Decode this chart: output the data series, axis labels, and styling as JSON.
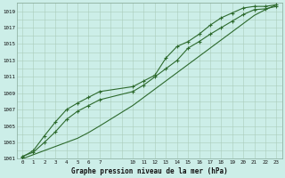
{
  "title": "Graphe pression niveau de la mer (hPa)",
  "bg_color": "#cceee8",
  "grid_color": "#aaccbb",
  "line_color": "#2d6a2d",
  "xlim": [
    -0.5,
    23.5
  ],
  "ylim": [
    1001,
    1020
  ],
  "xticks": [
    0,
    1,
    2,
    3,
    4,
    5,
    6,
    7,
    10,
    11,
    12,
    13,
    14,
    15,
    16,
    17,
    18,
    19,
    20,
    21,
    22,
    23
  ],
  "yticks": [
    1001,
    1003,
    1005,
    1007,
    1009,
    1011,
    1013,
    1015,
    1017,
    1019
  ],
  "hours": [
    0,
    1,
    2,
    3,
    4,
    5,
    6,
    7,
    10,
    11,
    12,
    13,
    14,
    15,
    16,
    17,
    18,
    19,
    20,
    21,
    22,
    23
  ],
  "series1_y": [
    1001.3,
    1001.8,
    1003.0,
    1004.3,
    1005.8,
    1006.8,
    1007.5,
    1008.2,
    1009.2,
    1010.0,
    1011.0,
    1012.0,
    1013.0,
    1014.5,
    1015.3,
    1016.2,
    1017.0,
    1017.8,
    1018.6,
    1019.2,
    1019.3,
    1019.6
  ],
  "series2_y": [
    1001.2,
    1002.0,
    1003.8,
    1005.5,
    1007.0,
    1007.8,
    1008.5,
    1009.2,
    1009.8,
    1010.5,
    1011.2,
    1013.3,
    1014.7,
    1015.3,
    1016.2,
    1017.3,
    1018.2,
    1018.8,
    1019.4,
    1019.6,
    1019.6,
    1019.8
  ],
  "series3_y": [
    1001.0,
    1001.5,
    1002.0,
    1002.5,
    1003.0,
    1003.5,
    1004.2,
    1005.0,
    1007.5,
    1008.5,
    1009.5,
    1010.5,
    1011.5,
    1012.5,
    1013.5,
    1014.5,
    1015.5,
    1016.5,
    1017.5,
    1018.5,
    1019.2,
    1019.8
  ]
}
